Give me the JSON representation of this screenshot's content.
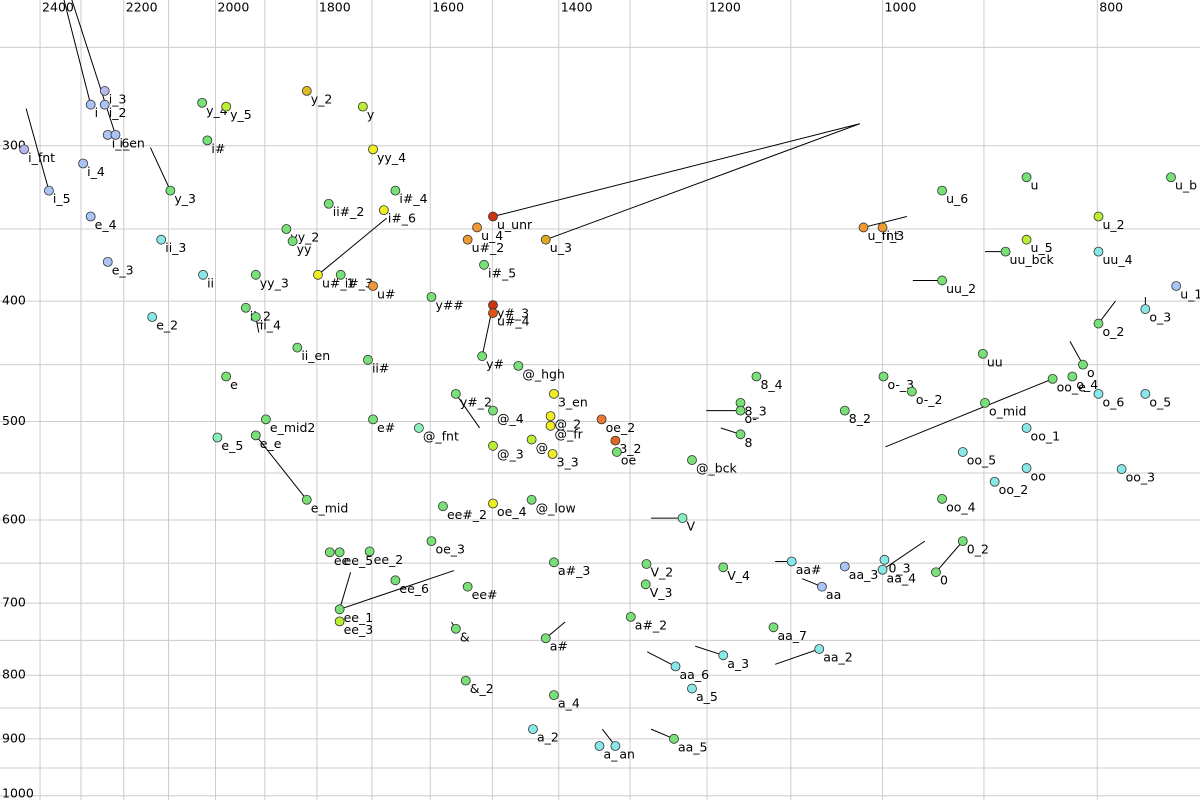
{
  "chart_data": {
    "type": "scatter",
    "xscale": "log",
    "yscale": "log",
    "grid": true,
    "line_color": "#000000",
    "grid_color": "#cccccc",
    "xlim": [
      2502,
      719
    ],
    "ylim": [
      229,
      1008
    ],
    "xticks": [
      2400,
      2200,
      2000,
      1800,
      1600,
      1400,
      1200,
      1000,
      800
    ],
    "xticks_minor": [
      2300,
      2100,
      1900,
      1700,
      1500,
      1300,
      1100,
      900
    ],
    "yticks": [
      300,
      400,
      500,
      600,
      700,
      800,
      900,
      1000
    ],
    "yticks_minor": [
      250,
      350,
      450,
      550,
      650,
      750,
      850,
      950
    ],
    "labels": [
      "i_3",
      "i",
      "i_2",
      "i_6",
      "i_en",
      "i_fnt",
      "i_4",
      "i_5",
      "e_4",
      "e_3",
      "e_2",
      "ii_3",
      "ii",
      "i#",
      "y_4",
      "y_5",
      "y_3",
      "y_2",
      "y",
      "yy_4",
      "ii#_2",
      "i#_4",
      "i#_6",
      "yy_2",
      "yy",
      "yy_3",
      "u#_1",
      "i#_3",
      "u#",
      "y##",
      "ii_2",
      "ii_4",
      "ii_en",
      "e",
      "ii#",
      "e_mid2",
      "e_5",
      "e_e",
      "e_mid",
      "e#",
      "@_fnt",
      "y#_2",
      "@_4",
      "@_3",
      "y#",
      "i#_5",
      "y#_3",
      "u#_4",
      "u_unr",
      "u_4",
      "u#_2",
      "u_3",
      "@_hgh",
      "3_en",
      "@_2",
      "@_fr",
      "@",
      "3_3",
      "oe_2",
      "3_2",
      "oe",
      "@_bck",
      "ee#_2",
      "oe_4",
      "@_low",
      "oe_3",
      "ee",
      "ee_5",
      "ee_2",
      "ee_6",
      "ee#",
      "ee_1",
      "ee_3",
      "&",
      "&_2",
      "a#",
      "a_4",
      "a_2",
      "a_",
      "an",
      "a#_3",
      "a#_2",
      "V_2",
      "V_3",
      "V",
      "V_4",
      "aa_6",
      "a_3",
      "a_5",
      "aa_5",
      "aa_7",
      "aa_2",
      "aa#",
      "aa",
      "aa_3",
      "aa_4",
      "0_3",
      "0",
      "0_2",
      "8_4",
      "8_3",
      "o-",
      "8",
      "8_2",
      "o-_3",
      "o-_2",
      "u_6",
      "u",
      "u_2",
      "u_b",
      "u_fnt",
      "i_3",
      "u_5",
      "uu_bck",
      "uu_4",
      "uu_2",
      "u_1",
      "uu",
      "o_mid",
      "oo_e",
      "o_4",
      "o",
      "o_2",
      "o_3",
      "o_6",
      "o_5",
      "oo_1",
      "oo_5",
      "oo",
      "oo_2",
      "oo_4",
      "oo_3"
    ],
    "x": [
      2244,
      2277,
      2244,
      2237,
      2219,
      2440,
      2295,
      2378,
      2277,
      2237,
      2136,
      2116,
      2026,
      2017,
      2028,
      1978,
      2096,
      1819,
      1716,
      1698,
      1778,
      1659,
      1679,
      1858,
      1846,
      1918,
      1798,
      1756,
      1698,
      1598,
      1938,
      1918,
      1837,
      1978,
      1707,
      1898,
      1996,
      1918,
      1819,
      1698,
      1619,
      1558,
      1499,
      1499,
      1516,
      1513,
      1499,
      1499,
      1499,
      1524,
      1539,
      1419,
      1460,
      1407,
      1412,
      1412,
      1440,
      1409,
      1339,
      1320,
      1318,
      1219,
      1579,
      1499,
      1440,
      1598,
      1776,
      1758,
      1704,
      1659,
      1539,
      1758,
      1758,
      1558,
      1542,
      1419,
      1407,
      1438,
      1342,
      1320,
      1407,
      1299,
      1278,
      1279,
      1231,
      1180,
      1240,
      1180,
      1219,
      1242,
      1120,
      1068,
      1099,
      1065,
      1040,
      1000,
      998,
      946,
      920,
      1140,
      1159,
      1159,
      1159,
      1040,
      999,
      970,
      940,
      861,
      799,
      741,
      1020,
      1000,
      861,
      880,
      799,
      940,
      737,
      901,
      899,
      838,
      821,
      812,
      799,
      761,
      799,
      761,
      861,
      920,
      861,
      890,
      940,
      780
    ],
    "y": [
      271,
      278,
      278,
      294,
      294,
      302,
      310,
      326,
      342,
      372,
      412,
      357,
      381,
      297,
      277,
      279,
      326,
      271,
      279,
      302,
      334,
      326,
      338,
      350,
      358,
      381,
      381,
      381,
      389,
      397,
      405,
      412,
      436,
      460,
      446,
      498,
      515,
      513,
      578,
      498,
      506,
      475,
      490,
      523,
      443,
      374,
      403,
      409,
      342,
      349,
      357,
      357,
      451,
      475,
      495,
      504,
      517,
      531,
      498,
      518,
      529,
      537,
      585,
      582,
      578,
      624,
      637,
      637,
      636,
      671,
      679,
      708,
      724,
      734,
      808,
      747,
      830,
      884,
      912,
      912,
      649,
      718,
      651,
      676,
      598,
      655,
      787,
      771,
      820,
      900,
      732,
      762,
      648,
      679,
      654,
      658,
      646,
      661,
      624,
      460,
      483,
      490,
      512,
      490,
      460,
      473,
      326,
      318,
      342,
      318,
      349,
      349,
      357,
      365,
      365,
      385,
      389,
      441,
      483,
      462,
      460,
      450,
      417,
      406,
      475,
      475,
      506,
      529,
      545,
      559,
      577,
      546
    ],
    "colors": [
      "#b8b8f0",
      "#a9c4f5",
      "#a9c4f5",
      "#a9c4f5",
      "#a9c4f5",
      "#b8b8f0",
      "#a9c4f5",
      "#a9c4f5",
      "#a9c4f5",
      "#a9c4f5",
      "#88e8e8",
      "#88e8e8",
      "#88e8e8",
      "#77e077",
      "#77e077",
      "#bbee33",
      "#77e077",
      "#ddbb22",
      "#bbee33",
      "#eeee22",
      "#77e077",
      "#77e077",
      "#eeee22",
      "#77e077",
      "#77e077",
      "#77e077",
      "#eeee22",
      "#77e077",
      "#ee9933",
      "#77e077",
      "#77e077",
      "#77e077",
      "#77e077",
      "#77e077",
      "#77e077",
      "#77e077",
      "#88eebb",
      "#77e077",
      "#77e077",
      "#77e077",
      "#88eebb",
      "#77e077",
      "#77e077",
      "#bbee33",
      "#77e077",
      "#77e077",
      "#cc3311",
      "#dd5511",
      "#cc3311",
      "#ee9933",
      "#ee9933",
      "#ddaa22",
      "#77e077",
      "#eeee22",
      "#eeee22",
      "#eeee22",
      "#bbee33",
      "#eeee22",
      "#ee7733",
      "#dd6622",
      "#77e077",
      "#77e077",
      "#77e077",
      "#eeee22",
      "#77e077",
      "#77e077",
      "#77e077",
      "#77e077",
      "#77e077",
      "#77e077",
      "#77e077",
      "#77e077",
      "#bbee33",
      "#77e077",
      "#77e077",
      "#77e077",
      "#77e077",
      "#88e8e8",
      "#88e8e8",
      "#88e8e8",
      "#77e077",
      "#77e077",
      "#77e077",
      "#77e077",
      "#88eebb",
      "#77e077",
      "#88e8e8",
      "#88e8e8",
      "#88e8e8",
      "#77e077",
      "#77e077",
      "#88e8e8",
      "#88e8e8",
      "#a9c4f5",
      "#a9c4f5",
      "#88e8e8",
      "#88e8e8",
      "#77e077",
      "#77e077",
      "#77e077",
      "#77e077",
      "#77e077",
      "#77e077",
      "#77e077",
      "#77e077",
      "#77e077",
      "#77e077",
      "#77e077",
      "#bbee33",
      "#77e077",
      "#ee9933",
      "#ee9933",
      "#bbee33",
      "#77e077",
      "#88e8e8",
      "#77e077",
      "#a9c4f5",
      "#77e077",
      "#77e077",
      "#77e077",
      "#77e077",
      "#77e077",
      "#77e077",
      "#88e8e8",
      "#88e8e8",
      "#88e8e8",
      "#88e8e8",
      "#88e8e8",
      "#88e8e8",
      "#88e8e8",
      "#77e077",
      "#88e8e8"
    ],
    "segments": [
      {
        "x": [
          2341,
          2277
        ],
        "y": [
          229,
          278
        ]
      },
      {
        "x": [
          2322,
          2219
        ],
        "y": [
          229,
          294
        ]
      },
      {
        "x": [
          2435,
          2378
        ],
        "y": [
          280,
          326
        ]
      },
      {
        "x": [
          2140,
          2096
        ],
        "y": [
          301,
          326
        ]
      },
      {
        "x": [
          1024,
          1499
        ],
        "y": [
          288,
          342
        ]
      },
      {
        "x": [
          1024,
          1419
        ],
        "y": [
          288,
          357
        ]
      },
      {
        "x": [
          1674,
          1798
        ],
        "y": [
          343,
          381
        ]
      },
      {
        "x": [
          1499,
          1516
        ],
        "y": [
          403,
          443
        ]
      },
      {
        "x": [
          997,
          838
        ],
        "y": [
          524,
          462
        ]
      },
      {
        "x": [
          1201,
          1159
        ],
        "y": [
          490,
          490
        ]
      },
      {
        "x": [
          1183,
          1159
        ],
        "y": [
          506,
          512
        ]
      },
      {
        "x": [
          1272,
          1231
        ],
        "y": [
          598,
          598
        ]
      },
      {
        "x": [
          1561,
          1758
        ],
        "y": [
          659,
          708
        ]
      },
      {
        "x": [
          1738,
          1758
        ],
        "y": [
          661,
          708
        ]
      },
      {
        "x": [
          1918,
          1819
        ],
        "y": [
          513,
          578
        ]
      },
      {
        "x": [
          975,
          1020
        ],
        "y": [
          342,
          349
        ]
      },
      {
        "x": [
          969,
          940
        ],
        "y": [
          385,
          385
        ]
      },
      {
        "x": [
          899,
          880
        ],
        "y": [
          365,
          365
        ]
      },
      {
        "x": [
          823,
          812
        ],
        "y": [
          431,
          450
        ]
      },
      {
        "x": [
          785,
          799
        ],
        "y": [
          400,
          417
        ]
      },
      {
        "x": [
          957,
          1000
        ],
        "y": [
          624,
          658
        ]
      },
      {
        "x": [
          1118,
          1099
        ],
        "y": [
          648,
          648
        ]
      },
      {
        "x": [
          1087,
          1065
        ],
        "y": [
          669,
          679
        ]
      },
      {
        "x": [
          1118,
          1068
        ],
        "y": [
          784,
          762
        ]
      },
      {
        "x": [
          1215,
          1180
        ],
        "y": [
          758,
          771
        ]
      },
      {
        "x": [
          1277,
          1240
        ],
        "y": [
          766,
          787
        ]
      },
      {
        "x": [
          1272,
          1242
        ],
        "y": [
          884,
          900
        ]
      },
      {
        "x": [
          1338,
          1320
        ],
        "y": [
          884,
          912
        ]
      },
      {
        "x": [
          1391,
          1419
        ],
        "y": [
          725,
          747
        ]
      },
      {
        "x": [
          1565,
          1558
        ],
        "y": [
          725,
          734
        ]
      },
      {
        "x": [
          1912,
          1918
        ],
        "y": [
          424,
          412
        ]
      },
      {
        "x": [
          1520,
          1558
        ],
        "y": [
          506,
          475
        ]
      },
      {
        "x": [
          761,
          761
        ],
        "y": [
          397,
          406
        ]
      },
      {
        "x": [
          920,
          946
        ],
        "y": [
          624,
          661
        ]
      }
    ]
  }
}
